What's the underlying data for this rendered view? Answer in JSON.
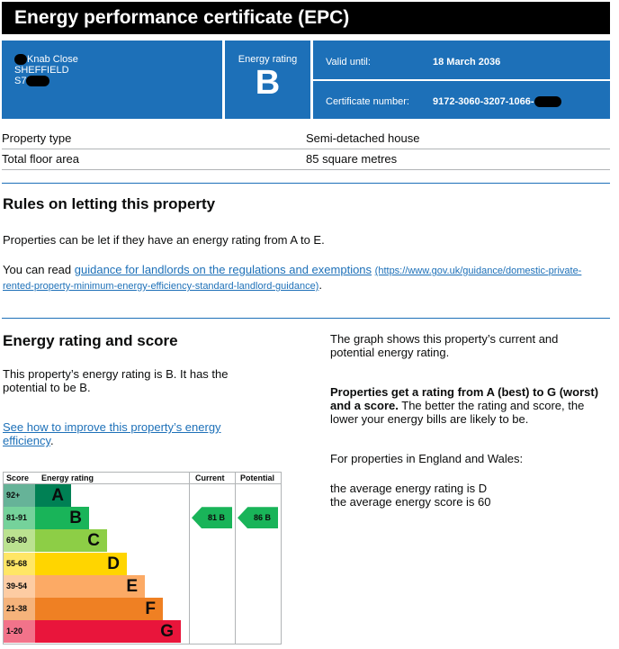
{
  "title": "Energy performance certificate (EPC)",
  "address": {
    "line1": "Knab Close",
    "line2": "SHEFFIELD",
    "line3": "S7"
  },
  "energy_rating": {
    "label": "Energy rating",
    "value": "B"
  },
  "valid_until": {
    "label": "Valid until:",
    "value": "18 March 2036"
  },
  "certificate": {
    "label": "Certificate number:",
    "value": "9172-3060-3207-1066-"
  },
  "details": [
    {
      "label": "Property type",
      "value": "Semi-detached house"
    },
    {
      "label": "Total floor area",
      "value": "85 square metres"
    }
  ],
  "letting": {
    "heading": "Rules on letting this property",
    "p1": "Properties can be let if they have an energy rating from A to E.",
    "p2_prefix": "You can read ",
    "link": "guidance for landlords on the regulations and exemptions",
    "link_url": "(https://www.gov.uk/guidance/domestic-private-rented-property-minimum-energy-efficiency-standard-landlord-guidance)",
    "p2_suffix": "."
  },
  "score": {
    "heading": "Energy rating and score",
    "p1": "This property’s energy rating is B. It has the potential to be B.",
    "link": "See how to improve this property’s energy efficiency",
    "link_suffix": ".",
    "right_p1": "The graph shows this property’s current and potential energy rating.",
    "right_bold": "Properties get a rating from A (best) to G (worst) and a score.",
    "right_p2": " The better the rating and score, the lower your energy bills are likely to be.",
    "right_p3": "For properties in England and Wales:",
    "avg1": "the average energy rating is D",
    "avg2": "the average energy score is 60"
  },
  "chart_data": {
    "type": "table",
    "headers": {
      "score": "Score",
      "rating": "Energy rating",
      "current": "Current",
      "potential": "Potential"
    },
    "bands": [
      {
        "score": "92+",
        "letter": "A",
        "color": "#008054",
        "score_bg": "#66b398"
      },
      {
        "score": "81-91",
        "letter": "B",
        "color": "#19b459",
        "score_bg": "#75d29b"
      },
      {
        "score": "69-80",
        "letter": "C",
        "color": "#8dce46",
        "score_bg": "#bbe290"
      },
      {
        "score": "55-68",
        "letter": "D",
        "color": "#ffd500",
        "score_bg": "#ffe666"
      },
      {
        "score": "39-54",
        "letter": "E",
        "color": "#fcaa65",
        "score_bg": "#fdcca3"
      },
      {
        "score": "21-38",
        "letter": "F",
        "color": "#ef8023",
        "score_bg": "#f5b37b"
      },
      {
        "score": "1-20",
        "letter": "G",
        "color": "#e9153b",
        "score_bg": "#f2738a"
      }
    ],
    "current": {
      "score": 81,
      "letter": "B",
      "label": "81  B"
    },
    "potential": {
      "score": 86,
      "letter": "B",
      "label": "86  B"
    }
  }
}
